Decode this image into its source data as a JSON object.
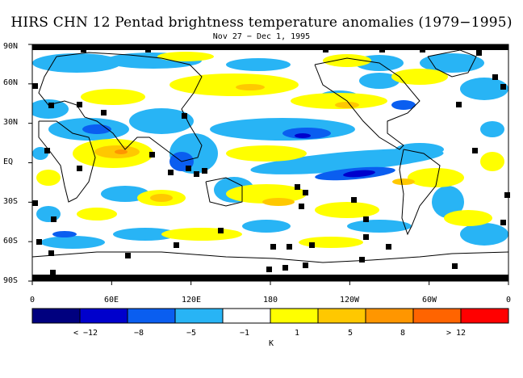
{
  "title": "HIRS CHN 12 Pentad brightness temperature anomalies (1979−1995)",
  "subtitle": "Nov 27 − Dec 1, 1995",
  "lat_labels": [
    "90N",
    "60N",
    "30N",
    "EQ",
    "30S",
    "60S",
    "90S"
  ],
  "lon_labels": [
    "0",
    "60E",
    "120E",
    "180",
    "120W",
    "60W",
    "0"
  ],
  "colorbar": {
    "unit": "K",
    "colors": [
      "#00007f",
      "#0000cc",
      "#0a5ef0",
      "#28b4f5",
      "#ffffff",
      "#ffff00",
      "#ffc800",
      "#ff9600",
      "#ff6400",
      "#ff0000"
    ],
    "labels": [
      "< −12",
      "−8",
      "−5",
      "−1",
      "1",
      "5",
      "8",
      "> 12"
    ]
  },
  "legend_colors": {
    "missing": "#000000",
    "coast": "#000000"
  }
}
